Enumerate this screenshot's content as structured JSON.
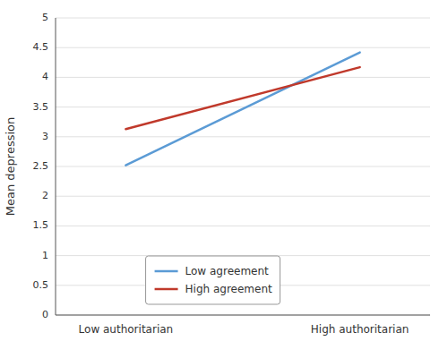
{
  "chart_data": {
    "type": "line",
    "y_label": "Mean depression",
    "categories": [
      "Low authoritarian",
      "High authoritarian"
    ],
    "series": [
      {
        "name": "Low agreement",
        "color": "#5B9BD5",
        "values": [
          2.52,
          4.42
        ]
      },
      {
        "name": "High agreement",
        "color": "#C0392B",
        "values": [
          3.13,
          4.17
        ]
      }
    ],
    "ylim": [
      0,
      5
    ],
    "yticks": [
      0,
      0.5,
      1,
      1.5,
      2,
      2.5,
      3,
      3.5,
      4,
      4.5,
      5
    ],
    "grid": true,
    "legend": "bottom"
  }
}
